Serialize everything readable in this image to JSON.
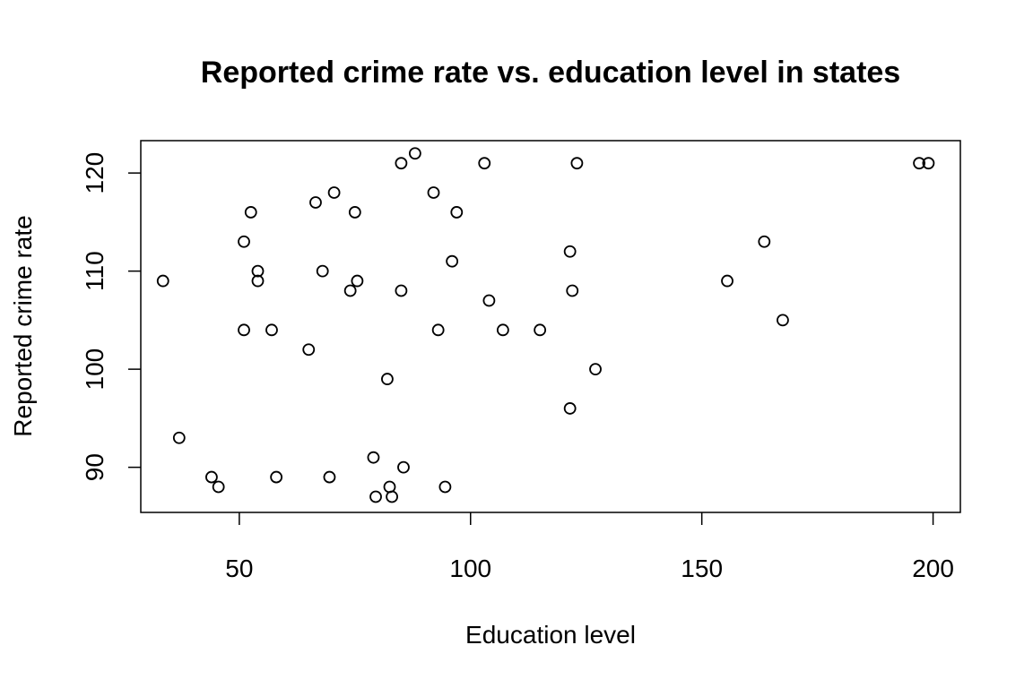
{
  "chart_data": {
    "type": "scatter",
    "title": "Reported crime rate vs. education level in states",
    "xlabel": "Education level",
    "ylabel": "Reported crime rate",
    "xlim": [
      28.7,
      205.9
    ],
    "ylim": [
      85.4,
      123.3
    ],
    "x_ticks": [
      50,
      100,
      150,
      200
    ],
    "y_ticks": [
      90,
      100,
      110,
      120
    ],
    "grid": false,
    "legend": "none",
    "marker": "open-circle",
    "series": [
      {
        "x": [
          33.5,
          37.0,
          44.0,
          45.5,
          51.0,
          51.0,
          52.5,
          54.0,
          54.0,
          57.0,
          58.0,
          65.0,
          66.5,
          68.0,
          69.5,
          70.5,
          74.0,
          75.0,
          75.5,
          79.0,
          79.5,
          82.0,
          82.5,
          83.0,
          85.0,
          85.0,
          85.5,
          88.0,
          92.0,
          93.0,
          94.5,
          96.0,
          97.0,
          103.0,
          104.0,
          107.0,
          115.0,
          121.5,
          121.5,
          122.0,
          123.0,
          127.0,
          155.5,
          163.5,
          167.5,
          197.0,
          199.0
        ],
        "y": [
          109,
          93,
          89,
          88,
          104,
          113,
          116,
          110,
          109,
          104,
          89,
          102,
          117,
          110,
          89,
          118,
          108,
          116,
          109,
          91,
          87,
          99,
          88,
          87,
          121,
          108,
          90,
          122,
          118,
          104,
          88,
          111,
          116,
          121,
          107,
          104,
          104,
          96,
          112,
          108,
          121,
          100,
          109,
          113,
          105,
          121,
          121
        ]
      }
    ]
  }
}
